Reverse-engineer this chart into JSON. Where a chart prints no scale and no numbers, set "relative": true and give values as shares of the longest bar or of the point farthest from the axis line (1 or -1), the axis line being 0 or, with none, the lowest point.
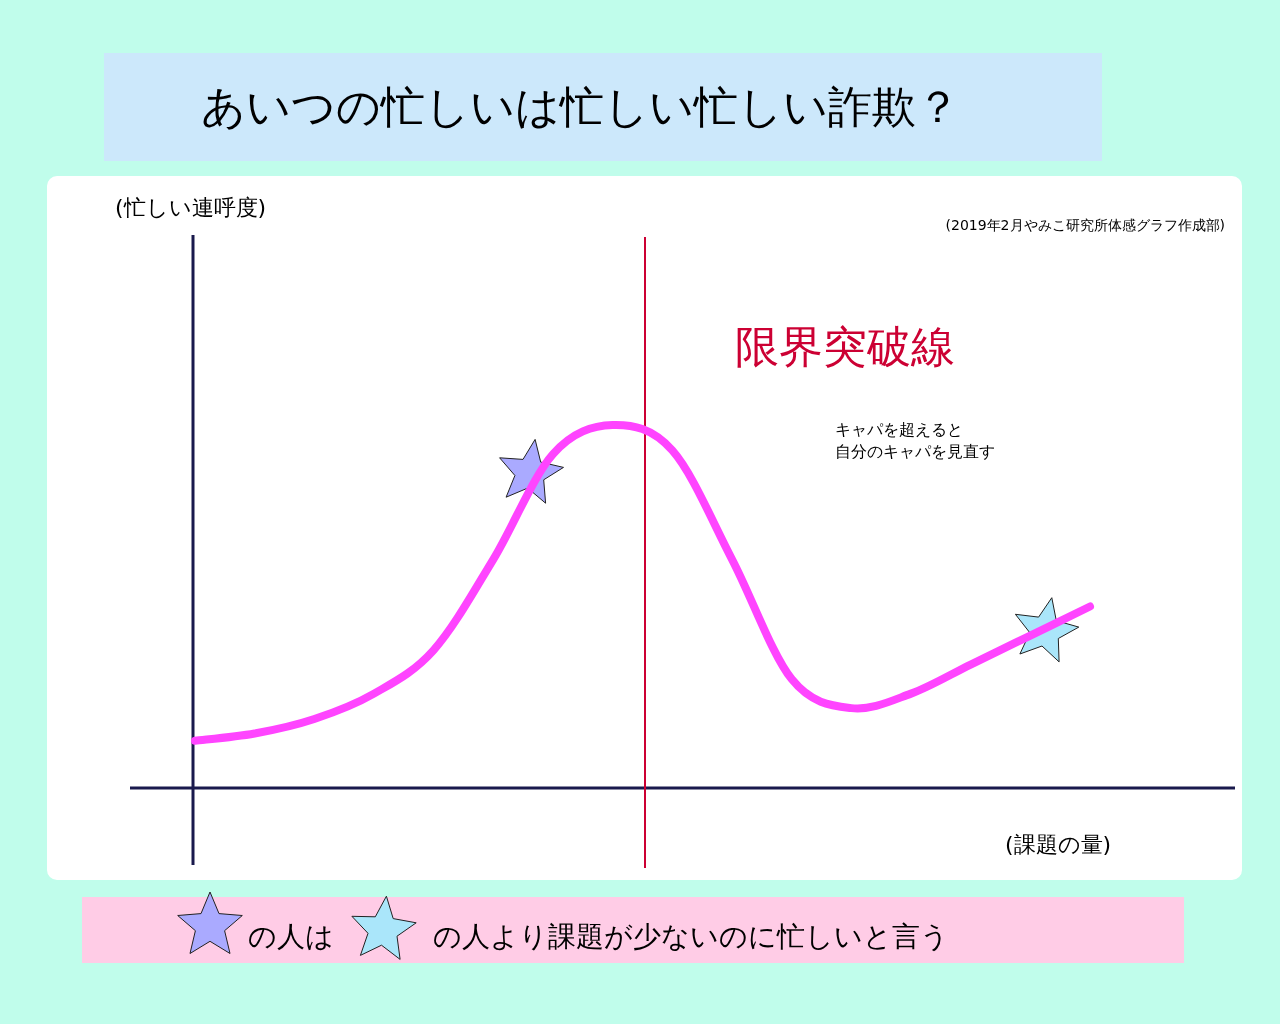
{
  "chart_data": {
    "type": "line",
    "title": "あいつの忙しいは忙しい忙しい詐欺？",
    "xlabel": "(課題の量)",
    "relative": true,
    "categories": [
      null,
      null,
      null,
      null,
      null,
      null,
      null,
      null,
      null,
      null,
      null,
      null,
      null,
      null,
      null,
      null
    ],
    "series": [
      {
        "color": "#ff44ff",
        "values": [
          0.13,
          0.15,
          0.19,
          0.26,
          0.38,
          0.63,
          0.92,
          1,
          0.93,
          0.63,
          0.3,
          0.22,
          0.26,
          0.34,
          0.42,
          0.5
        ]
      }
    ],
    "annotations": [
      "キャパを超えると",
      "自分のキャパを見直す",
      "(2019年2月やみこ研究所体感グラフ作成部)",
      "の人は",
      "の人より課題が少ないのに忙しいと言う",
      "(忙しい連呼度)",
      "限界突破線"
    ],
    "marker": "none",
    "line_style": "solid"
  }
}
